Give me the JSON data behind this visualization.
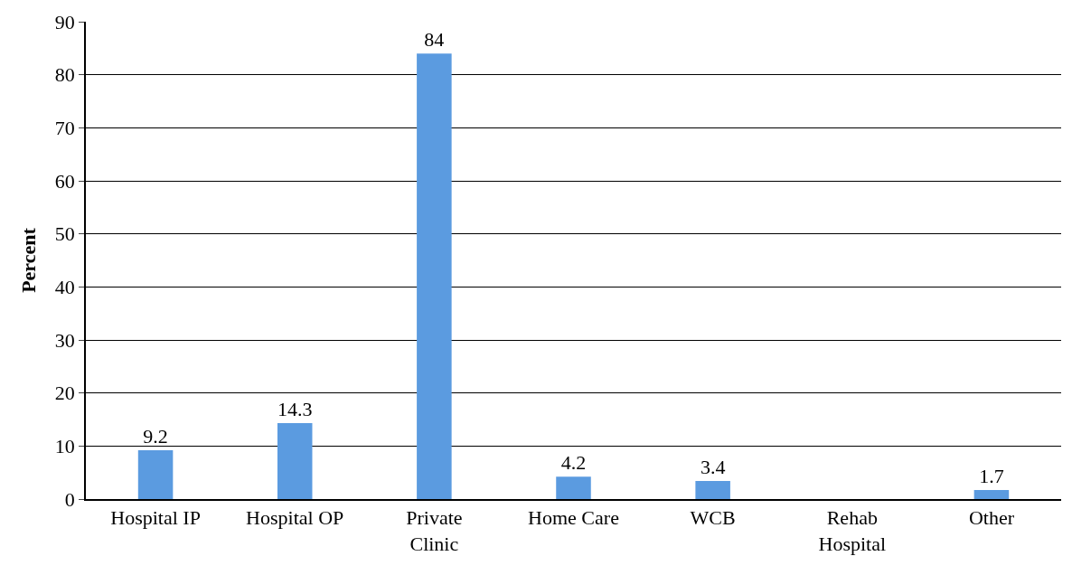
{
  "chart_data": {
    "type": "bar",
    "ylabel": "Percent",
    "categories": [
      "Hospital IP",
      "Hospital OP",
      "Private\nClinic",
      "Home Care",
      "WCB",
      "Rehab\nHospital",
      "Other"
    ],
    "values": [
      9.2,
      14.3,
      84,
      4.2,
      3.4,
      null,
      1.7
    ],
    "value_labels": [
      "9.2",
      "14.3",
      "84",
      "4.2",
      "3.4",
      null,
      "1.7"
    ],
    "color": "#5b9be0",
    "ylim": [
      0,
      90
    ],
    "yticks": [
      0,
      10,
      20,
      30,
      40,
      50,
      60,
      70,
      80,
      90
    ],
    "grid": "y",
    "legend": false
  }
}
